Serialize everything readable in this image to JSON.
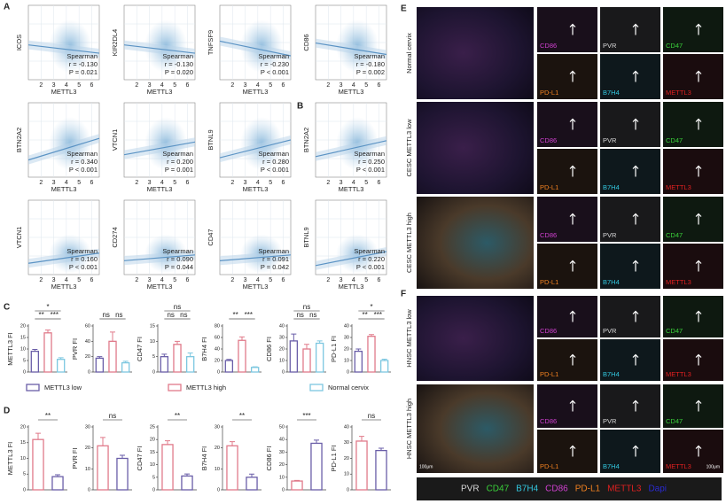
{
  "panel_labels": [
    "A",
    "B",
    "C",
    "D",
    "E",
    "F"
  ],
  "scatter": {
    "xlabel": "METTL3",
    "method": "Spearman",
    "xticks": [
      2,
      3,
      4,
      5,
      6
    ],
    "xlim": [
      1,
      6.6
    ],
    "panels": [
      {
        "ylabel": "ICOS",
        "r": {
          "value": -0.13,
          "label": "r = -0.130"
        },
        "p": "P = 0.021"
      },
      {
        "ylabel": "KIR2DL4",
        "r": {
          "value": -0.13,
          "label": "r = -0.130"
        },
        "p": "P = 0.020"
      },
      {
        "ylabel": "TNFSF9",
        "r": {
          "value": -0.23,
          "label": "r = -0.230"
        },
        "p": "P < 0.001"
      },
      {
        "ylabel": "CD86",
        "r": {
          "value": -0.18,
          "label": "r = -0.180"
        },
        "p": "P = 0.002"
      },
      {
        "ylabel": "BTN2A2",
        "r": {
          "value": 0.34,
          "label": "r = 0.340"
        },
        "p": "P < 0.001"
      },
      {
        "ylabel": "VTCN1",
        "r": {
          "value": 0.2,
          "label": "r = 0.200"
        },
        "p": "P = 0.001"
      },
      {
        "ylabel": "BTNL9",
        "r": {
          "value": 0.28,
          "label": "r = 0.280"
        },
        "p": "P < 0.001"
      },
      {
        "ylabel": "BTN2A2",
        "r": {
          "value": 0.25,
          "label": "r = 0.250"
        },
        "p": "P < 0.001"
      },
      {
        "ylabel": "VTCN1",
        "r": {
          "value": 0.16,
          "label": "r = 0.160"
        },
        "p": "P < 0.001"
      },
      {
        "ylabel": "CD274",
        "r": {
          "value": 0.09,
          "label": "r = 0.090"
        },
        "p": "P = 0.044"
      },
      {
        "ylabel": "CD47",
        "r": {
          "value": 0.091,
          "label": "r = 0.091"
        },
        "p": "P = 0.042"
      },
      {
        "ylabel": "BTNL9",
        "r": {
          "value": 0.22,
          "label": "r = 0.220"
        },
        "p": "P < 0.001"
      }
    ]
  },
  "chart_data": [
    {
      "type": "bar",
      "ylabel": "METTL3 FI",
      "values": [
        9,
        17,
        5.5
      ],
      "errors": [
        0.8,
        1.2,
        0.7
      ],
      "colors": [
        "#6a5ea8",
        "#e07a8a",
        "#7cc7e0"
      ],
      "ylim": [
        0,
        20
      ],
      "yticks": [
        0,
        5,
        10,
        15,
        20
      ],
      "annotations": [
        "*",
        "**",
        "***"
      ]
    },
    {
      "type": "bar",
      "ylabel": "PVR FI",
      "values": [
        18,
        40,
        12
      ],
      "errors": [
        2,
        12,
        2
      ],
      "colors": [
        "#6a5ea8",
        "#e07a8a",
        "#7cc7e0"
      ],
      "ylim": [
        0,
        60
      ],
      "yticks": [
        0,
        20,
        40,
        60
      ],
      "annotations": [
        "ns",
        "ns"
      ]
    },
    {
      "type": "bar",
      "ylabel": "CD47 FI",
      "values": [
        5,
        9,
        5
      ],
      "errors": [
        0.8,
        1,
        1.2
      ],
      "colors": [
        "#6a5ea8",
        "#e07a8a",
        "#7cc7e0"
      ],
      "ylim": [
        0,
        15
      ],
      "yticks": [
        0,
        5,
        10,
        15
      ],
      "annotations": [
        "ns",
        "ns",
        "ns"
      ]
    },
    {
      "type": "bar",
      "ylabel": "B7H4 FI",
      "values": [
        20,
        55,
        8
      ],
      "errors": [
        2,
        6,
        1
      ],
      "colors": [
        "#6a5ea8",
        "#e07a8a",
        "#7cc7e0"
      ],
      "ylim": [
        0,
        80
      ],
      "yticks": [
        0,
        20,
        40,
        60,
        80
      ],
      "annotations": [
        "**",
        "***"
      ]
    },
    {
      "type": "bar",
      "ylabel": "CD86 FI",
      "values": [
        27,
        20,
        25
      ],
      "errors": [
        6,
        4,
        2
      ],
      "colors": [
        "#6a5ea8",
        "#e07a8a",
        "#7cc7e0"
      ],
      "ylim": [
        0,
        40
      ],
      "yticks": [
        0,
        10,
        20,
        30,
        40
      ],
      "annotations": [
        "ns",
        "ns",
        "ns"
      ]
    },
    {
      "type": "bar",
      "ylabel": "PD-L1 FI",
      "values": [
        18,
        31,
        10
      ],
      "errors": [
        2,
        1.5,
        1.2
      ],
      "colors": [
        "#6a5ea8",
        "#e07a8a",
        "#7cc7e0"
      ],
      "ylim": [
        0,
        40
      ],
      "yticks": [
        0,
        10,
        20,
        30,
        40
      ],
      "annotations": [
        "*",
        "**",
        "***"
      ]
    },
    {
      "type": "bar",
      "ylabel": "METTL3 FI",
      "values": [
        16,
        4.2
      ],
      "errors": [
        2,
        0.6
      ],
      "colors": [
        "#e07a8a",
        "#6a5ea8"
      ],
      "ylim": [
        0,
        20
      ],
      "yticks": [
        0,
        5,
        10,
        15,
        20
      ],
      "annotations": [
        "**"
      ]
    },
    {
      "type": "bar",
      "ylabel": "PVR FI",
      "values": [
        21,
        15
      ],
      "errors": [
        4,
        1.5
      ],
      "colors": [
        "#e07a8a",
        "#6a5ea8"
      ],
      "ylim": [
        0,
        30
      ],
      "yticks": [
        0,
        10,
        20,
        30
      ],
      "annotations": [
        "ns"
      ]
    },
    {
      "type": "bar",
      "ylabel": "CD47 FI",
      "values": [
        18,
        5.5
      ],
      "errors": [
        1.5,
        0.8
      ],
      "colors": [
        "#e07a8a",
        "#6a5ea8"
      ],
      "ylim": [
        0,
        25
      ],
      "yticks": [
        0,
        5,
        10,
        15,
        20,
        25
      ],
      "annotations": [
        "**"
      ]
    },
    {
      "type": "bar",
      "ylabel": "B7H4 FI",
      "values": [
        21,
        6
      ],
      "errors": [
        2,
        1.5
      ],
      "colors": [
        "#e07a8a",
        "#6a5ea8"
      ],
      "ylim": [
        0,
        30
      ],
      "yticks": [
        0,
        10,
        20,
        30
      ],
      "annotations": [
        "**"
      ]
    },
    {
      "type": "bar",
      "ylabel": "CD86 FI",
      "values": [
        7,
        37
      ],
      "errors": [
        0.5,
        2.5
      ],
      "colors": [
        "#e07a8a",
        "#6a5ea8"
      ],
      "ylim": [
        0,
        50
      ],
      "yticks": [
        0,
        10,
        20,
        30,
        40,
        50
      ],
      "annotations": [
        "***"
      ]
    },
    {
      "type": "bar",
      "ylabel": "PD-L1 FI",
      "values": [
        31,
        25
      ],
      "errors": [
        3,
        1.5
      ],
      "colors": [
        "#e07a8a",
        "#6a5ea8"
      ],
      "ylim": [
        0,
        40
      ],
      "yticks": [
        0,
        10,
        20,
        30,
        40
      ],
      "annotations": [
        "ns"
      ]
    }
  ],
  "legend": [
    {
      "name": "METTL3 low",
      "color": "#6a5ea8"
    },
    {
      "name": "METTL3 high",
      "color": "#e07a8a"
    },
    {
      "name": "Normal cervix",
      "color": "#7cc7e0"
    }
  ],
  "imaging": {
    "rows": [
      "Normal cervix",
      "CESC METTL3 low",
      "CESC METTL3 high",
      "HNSC METTL3 low",
      "HNSC METTL3 high"
    ],
    "tiles": [
      [
        "CD86",
        "PVR",
        "CD47"
      ],
      [
        "PD-L1",
        "B7H4",
        "METTL3"
      ]
    ],
    "scale_bar": "100μm",
    "channels": [
      {
        "name": "PVR",
        "color": "#d8d8d8"
      },
      {
        "name": "CD47",
        "color": "#3ad13a"
      },
      {
        "name": "B7H4",
        "color": "#33c8e0"
      },
      {
        "name": "CD86",
        "color": "#d040d0"
      },
      {
        "name": "PD-L1",
        "color": "#f08020"
      },
      {
        "name": "METTL3",
        "color": "#e02020"
      },
      {
        "name": "Dapi",
        "color": "#2a2ad0"
      }
    ]
  }
}
